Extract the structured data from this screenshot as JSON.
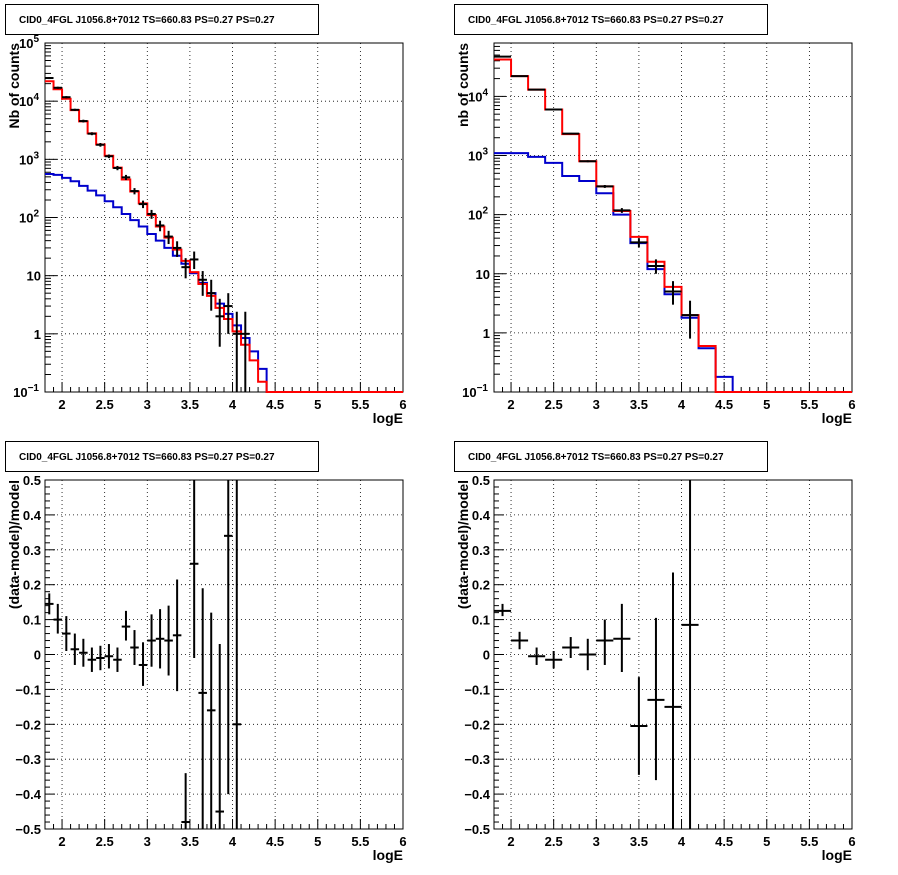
{
  "colors": {
    "data": "#000000",
    "total_model": "#ff0000",
    "source_model": "#0000cc",
    "grid": "#000000"
  },
  "chart_data": [
    {
      "id": "counts-left",
      "type": "line",
      "title": "CID0_4FGL J1056.8+7012 TS=660.83 PS=0.27 PS=0.27",
      "xlabel": "logE",
      "ylabel": "Nb of counts",
      "xlim": [
        1.8,
        6.0
      ],
      "ylim": [
        0.1,
        100000
      ],
      "yscale": "log",
      "grid": true,
      "x_ticks": [
        {
          "v": 2,
          "label": "2"
        },
        {
          "v": 2.5,
          "label": "2.5"
        },
        {
          "v": 3,
          "label": "3"
        },
        {
          "v": 3.5,
          "label": "3.5"
        },
        {
          "v": 4,
          "label": "4"
        },
        {
          "v": 4.5,
          "label": "4.5"
        },
        {
          "v": 5,
          "label": "5"
        },
        {
          "v": 5.5,
          "label": "5.5"
        },
        {
          "v": 6,
          "label": "6"
        }
      ],
      "y_ticks": [
        {
          "v": 0.1,
          "label": "10",
          "exp": "−1"
        },
        {
          "v": 1,
          "label": "1"
        },
        {
          "v": 10,
          "label": "10"
        },
        {
          "v": 100,
          "label": "10",
          "exp": "2"
        },
        {
          "v": 1000,
          "label": "10",
          "exp": "3"
        },
        {
          "v": 10000,
          "label": "10",
          "exp": "4"
        },
        {
          "v": 100000,
          "label": "10",
          "exp": "5"
        }
      ],
      "bin_edges": [
        1.8,
        1.9,
        2.0,
        2.1,
        2.2,
        2.3,
        2.4,
        2.5,
        2.6,
        2.7,
        2.8,
        2.9,
        3.0,
        3.1,
        3.2,
        3.3,
        3.4,
        3.5,
        3.6,
        3.7,
        3.8,
        3.9,
        4.0,
        4.1,
        4.2,
        4.3,
        4.4,
        4.5,
        4.6,
        4.7,
        4.8,
        4.9,
        5.0,
        5.1,
        5.2,
        5.3,
        5.4,
        5.5,
        5.6,
        5.7,
        5.8,
        5.9,
        6.0
      ],
      "series": [
        {
          "role": "total_model",
          "values": [
            22000,
            16000,
            11000,
            7000,
            4500,
            2800,
            1800,
            1150,
            720,
            450,
            280,
            175,
            110,
            70,
            45,
            28,
            18,
            11.5,
            7.2,
            4.5,
            2.8,
            1.8,
            1.1,
            0.65,
            0.35,
            0.15,
            0.1,
            0.1,
            0.1,
            0.1,
            0.1,
            0.1,
            0.1,
            0.1,
            0.1,
            0.1,
            0.1,
            0.1,
            0.1,
            0.1,
            0.1,
            0.1
          ]
        },
        {
          "role": "source_model",
          "values": [
            560,
            540,
            480,
            420,
            350,
            290,
            240,
            190,
            150,
            115,
            90,
            70,
            52,
            40,
            30,
            22,
            16,
            11,
            7.5,
            5.0,
            3.3,
            2.2,
            1.4,
            0.85,
            0.5,
            0.25,
            0.1,
            0.1,
            0.1,
            0.1,
            0.1,
            0.1,
            0.1,
            0.1,
            0.1,
            0.1,
            0.1,
            0.1,
            0.1,
            0.1,
            0.1,
            0.1
          ]
        }
      ],
      "points": [
        {
          "x": 1.85,
          "y": 25000,
          "lo": 24000,
          "hi": 26000
        },
        {
          "x": 1.95,
          "y": 17000,
          "lo": 16300,
          "hi": 17700
        },
        {
          "x": 2.05,
          "y": 11700,
          "lo": 11200,
          "hi": 12200
        },
        {
          "x": 2.15,
          "y": 7100,
          "lo": 6800,
          "hi": 7400
        },
        {
          "x": 2.25,
          "y": 4550,
          "lo": 4300,
          "hi": 4800
        },
        {
          "x": 2.35,
          "y": 2760,
          "lo": 2600,
          "hi": 2920
        },
        {
          "x": 2.45,
          "y": 1780,
          "lo": 1650,
          "hi": 1910
        },
        {
          "x": 2.55,
          "y": 1130,
          "lo": 1050,
          "hi": 1210
        },
        {
          "x": 2.65,
          "y": 710,
          "lo": 650,
          "hi": 770
        },
        {
          "x": 2.75,
          "y": 490,
          "lo": 440,
          "hi": 540
        },
        {
          "x": 2.85,
          "y": 285,
          "lo": 250,
          "hi": 320
        },
        {
          "x": 2.95,
          "y": 170,
          "lo": 145,
          "hi": 195
        },
        {
          "x": 3.05,
          "y": 115,
          "lo": 95,
          "hi": 135
        },
        {
          "x": 3.15,
          "y": 73,
          "lo": 58,
          "hi": 88
        },
        {
          "x": 3.25,
          "y": 47,
          "lo": 35,
          "hi": 59
        },
        {
          "x": 3.35,
          "y": 30,
          "lo": 21,
          "hi": 39
        },
        {
          "x": 3.45,
          "y": 14,
          "lo": 9,
          "hi": 20
        },
        {
          "x": 3.55,
          "y": 19,
          "lo": 13,
          "hi": 26
        },
        {
          "x": 3.65,
          "y": 8.5,
          "lo": 4.5,
          "hi": 12
        },
        {
          "x": 3.75,
          "y": 5,
          "lo": 2.5,
          "hi": 8.5
        },
        {
          "x": 3.85,
          "y": 2,
          "lo": 0.6,
          "hi": 4
        },
        {
          "x": 3.95,
          "y": 3,
          "lo": 1,
          "hi": 5
        },
        {
          "x": 4.05,
          "y": 1,
          "lo": 0.1,
          "hi": 2.4
        },
        {
          "x": 4.15,
          "y": 1,
          "lo": 0.1,
          "hi": 2.4
        }
      ]
    },
    {
      "id": "counts-right",
      "type": "line",
      "title": "CID0_4FGL J1056.8+7012 TS=660.83 PS=0.27 PS=0.27",
      "xlabel": "logE",
      "ylabel": "nb of counts",
      "xlim": [
        1.8,
        6.0
      ],
      "ylim": [
        0.1,
        80000
      ],
      "yscale": "log",
      "grid": true,
      "x_ticks": [
        {
          "v": 2,
          "label": "2"
        },
        {
          "v": 2.5,
          "label": "2.5"
        },
        {
          "v": 3,
          "label": "3"
        },
        {
          "v": 3.5,
          "label": "3.5"
        },
        {
          "v": 4,
          "label": "4"
        },
        {
          "v": 4.5,
          "label": "4.5"
        },
        {
          "v": 5,
          "label": "5"
        },
        {
          "v": 5.5,
          "label": "5.5"
        },
        {
          "v": 6,
          "label": "6"
        }
      ],
      "y_ticks": [
        {
          "v": 0.1,
          "label": "10",
          "exp": "−1"
        },
        {
          "v": 1,
          "label": "1"
        },
        {
          "v": 10,
          "label": "10"
        },
        {
          "v": 100,
          "label": "10",
          "exp": "2"
        },
        {
          "v": 1000,
          "label": "10",
          "exp": "3"
        },
        {
          "v": 10000,
          "label": "10",
          "exp": "4"
        }
      ],
      "bin_edges": [
        1.8,
        2.0,
        2.2,
        2.4,
        2.6,
        2.8,
        3.0,
        3.2,
        3.4,
        3.6,
        3.8,
        4.0,
        4.2,
        4.4,
        4.6,
        4.8,
        5.0,
        5.2,
        5.4,
        5.6,
        5.8,
        6.0
      ],
      "series": [
        {
          "role": "total_model",
          "values": [
            42000,
            22000,
            13000,
            6000,
            2300,
            800,
            300,
            115,
            42,
            16,
            6,
            2,
            0.6,
            0.1,
            0.1,
            0.1,
            0.1,
            0.1,
            0.1,
            0.1,
            0.1
          ]
        },
        {
          "role": "source_model",
          "values": [
            1100,
            1100,
            950,
            750,
            450,
            370,
            230,
            100,
            33,
            12,
            4.5,
            1.8,
            0.55,
            0.18,
            0.1,
            0.1,
            0.1,
            0.1,
            0.1,
            0.1,
            0.1
          ]
        }
      ],
      "points": [
        {
          "x": 1.9,
          "y": 47000,
          "lo": 46500,
          "hi": 47500
        },
        {
          "x": 2.1,
          "y": 22000,
          "lo": 21700,
          "hi": 22300
        },
        {
          "x": 2.3,
          "y": 13000,
          "lo": 12800,
          "hi": 13200
        },
        {
          "x": 2.5,
          "y": 6000,
          "lo": 5900,
          "hi": 6100
        },
        {
          "x": 2.7,
          "y": 2350,
          "lo": 2290,
          "hi": 2410
        },
        {
          "x": 2.9,
          "y": 800,
          "lo": 770,
          "hi": 830
        },
        {
          "x": 3.1,
          "y": 300,
          "lo": 283,
          "hi": 317
        },
        {
          "x": 3.3,
          "y": 118,
          "lo": 107,
          "hi": 129
        },
        {
          "x": 3.5,
          "y": 34,
          "lo": 28,
          "hi": 40
        },
        {
          "x": 3.7,
          "y": 13.5,
          "lo": 10,
          "hi": 17.5
        },
        {
          "x": 3.9,
          "y": 5,
          "lo": 3,
          "hi": 7.5
        },
        {
          "x": 4.1,
          "y": 2,
          "lo": 0.8,
          "hi": 3.5
        }
      ]
    },
    {
      "id": "residuals-left",
      "type": "scatter",
      "title": "CID0_4FGL J1056.8+7012 TS=660.83 PS=0.27 PS=0.27",
      "xlabel": "logE",
      "ylabel": "(data-model)/model",
      "xlim": [
        1.8,
        6.0
      ],
      "ylim": [
        -0.5,
        0.5
      ],
      "yscale": "linear",
      "grid": true,
      "x_ticks": [
        {
          "v": 2,
          "label": "2"
        },
        {
          "v": 2.5,
          "label": "2.5"
        },
        {
          "v": 3,
          "label": "3"
        },
        {
          "v": 3.5,
          "label": "3.5"
        },
        {
          "v": 4,
          "label": "4"
        },
        {
          "v": 4.5,
          "label": "4.5"
        },
        {
          "v": 5,
          "label": "5"
        },
        {
          "v": 5.5,
          "label": "5.5"
        },
        {
          "v": 6,
          "label": "6"
        }
      ],
      "y_ticks": [
        {
          "v": -0.5,
          "label": "−0.5"
        },
        {
          "v": -0.4,
          "label": "−0.4"
        },
        {
          "v": -0.3,
          "label": "−0.3"
        },
        {
          "v": -0.2,
          "label": "−0.2"
        },
        {
          "v": -0.1,
          "label": "−0.1"
        },
        {
          "v": 0,
          "label": "0"
        },
        {
          "v": 0.1,
          "label": "0.1"
        },
        {
          "v": 0.2,
          "label": "0.2"
        },
        {
          "v": 0.3,
          "label": "0.3"
        },
        {
          "v": 0.4,
          "label": "0.4"
        },
        {
          "v": 0.5,
          "label": "0.5"
        }
      ],
      "bin_half_width": 0.05,
      "points": [
        {
          "x": 1.85,
          "y": 0.145,
          "lo": 0.115,
          "hi": 0.175
        },
        {
          "x": 1.95,
          "y": 0.1,
          "lo": 0.06,
          "hi": 0.145
        },
        {
          "x": 2.05,
          "y": 0.06,
          "lo": 0.01,
          "hi": 0.11
        },
        {
          "x": 2.15,
          "y": 0.015,
          "lo": -0.03,
          "hi": 0.06
        },
        {
          "x": 2.25,
          "y": 0.005,
          "lo": -0.035,
          "hi": 0.045
        },
        {
          "x": 2.35,
          "y": -0.015,
          "lo": -0.05,
          "hi": 0.02
        },
        {
          "x": 2.45,
          "y": -0.01,
          "lo": -0.045,
          "hi": 0.025
        },
        {
          "x": 2.55,
          "y": -0.005,
          "lo": -0.04,
          "hi": 0.03
        },
        {
          "x": 2.65,
          "y": -0.015,
          "lo": -0.05,
          "hi": 0.02
        },
        {
          "x": 2.75,
          "y": 0.08,
          "lo": 0.04,
          "hi": 0.125
        },
        {
          "x": 2.85,
          "y": 0.02,
          "lo": -0.03,
          "hi": 0.07
        },
        {
          "x": 2.95,
          "y": -0.03,
          "lo": -0.09,
          "hi": 0.035
        },
        {
          "x": 3.05,
          "y": 0.04,
          "lo": -0.035,
          "hi": 0.115
        },
        {
          "x": 3.15,
          "y": 0.045,
          "lo": -0.04,
          "hi": 0.13
        },
        {
          "x": 3.25,
          "y": 0.04,
          "lo": -0.06,
          "hi": 0.14
        },
        {
          "x": 3.35,
          "y": 0.055,
          "lo": -0.105,
          "hi": 0.215
        },
        {
          "x": 3.45,
          "y": -0.48,
          "lo": -0.5,
          "hi": -0.34
        },
        {
          "x": 3.55,
          "y": 0.26,
          "lo": -0.01,
          "hi": 0.5
        },
        {
          "x": 3.65,
          "y": -0.11,
          "lo": -0.5,
          "hi": 0.19
        },
        {
          "x": 3.75,
          "y": -0.16,
          "lo": -0.5,
          "hi": 0.12
        },
        {
          "x": 3.85,
          "y": -0.45,
          "lo": -0.5,
          "hi": 0.03
        },
        {
          "x": 3.95,
          "y": 0.34,
          "lo": -0.4,
          "hi": 0.5
        },
        {
          "x": 4.05,
          "y": -0.2,
          "lo": -0.5,
          "hi": 0.5
        }
      ]
    },
    {
      "id": "residuals-right",
      "type": "scatter",
      "title": "CID0_4FGL J1056.8+7012 TS=660.83 PS=0.27 PS=0.27",
      "xlabel": "logE",
      "ylabel": "(data-model)/model",
      "xlim": [
        1.8,
        6.0
      ],
      "ylim": [
        -0.5,
        0.5
      ],
      "yscale": "linear",
      "grid": true,
      "x_ticks": [
        {
          "v": 2,
          "label": "2"
        },
        {
          "v": 2.5,
          "label": "2.5"
        },
        {
          "v": 3,
          "label": "3"
        },
        {
          "v": 3.5,
          "label": "3.5"
        },
        {
          "v": 4,
          "label": "4"
        },
        {
          "v": 4.5,
          "label": "4.5"
        },
        {
          "v": 5,
          "label": "5"
        },
        {
          "v": 5.5,
          "label": "5.5"
        },
        {
          "v": 6,
          "label": "6"
        }
      ],
      "y_ticks": [
        {
          "v": -0.5,
          "label": "−0.5"
        },
        {
          "v": -0.4,
          "label": "−0.4"
        },
        {
          "v": -0.3,
          "label": "−0.3"
        },
        {
          "v": -0.2,
          "label": "−0.2"
        },
        {
          "v": -0.1,
          "label": "−0.1"
        },
        {
          "v": 0,
          "label": "0"
        },
        {
          "v": 0.1,
          "label": "0.1"
        },
        {
          "v": 0.2,
          "label": "0.2"
        },
        {
          "v": 0.3,
          "label": "0.3"
        },
        {
          "v": 0.4,
          "label": "0.4"
        },
        {
          "v": 0.5,
          "label": "0.5"
        }
      ],
      "bin_half_width": 0.1,
      "points": [
        {
          "x": 1.9,
          "y": 0.125,
          "lo": 0.11,
          "hi": 0.145
        },
        {
          "x": 2.1,
          "y": 0.04,
          "lo": 0.015,
          "hi": 0.065
        },
        {
          "x": 2.3,
          "y": -0.005,
          "lo": -0.03,
          "hi": 0.02
        },
        {
          "x": 2.5,
          "y": -0.015,
          "lo": -0.04,
          "hi": 0.01
        },
        {
          "x": 2.7,
          "y": 0.02,
          "lo": -0.01,
          "hi": 0.05
        },
        {
          "x": 2.9,
          "y": 0.0,
          "lo": -0.045,
          "hi": 0.045
        },
        {
          "x": 3.1,
          "y": 0.04,
          "lo": -0.03,
          "hi": 0.1
        },
        {
          "x": 3.3,
          "y": 0.045,
          "lo": -0.05,
          "hi": 0.145
        },
        {
          "x": 3.5,
          "y": -0.205,
          "lo": -0.345,
          "hi": -0.065
        },
        {
          "x": 3.7,
          "y": -0.13,
          "lo": -0.36,
          "hi": 0.105
        },
        {
          "x": 3.9,
          "y": -0.15,
          "lo": -0.5,
          "hi": 0.235
        },
        {
          "x": 4.1,
          "y": 0.085,
          "lo": -0.5,
          "hi": 0.5
        }
      ]
    }
  ]
}
